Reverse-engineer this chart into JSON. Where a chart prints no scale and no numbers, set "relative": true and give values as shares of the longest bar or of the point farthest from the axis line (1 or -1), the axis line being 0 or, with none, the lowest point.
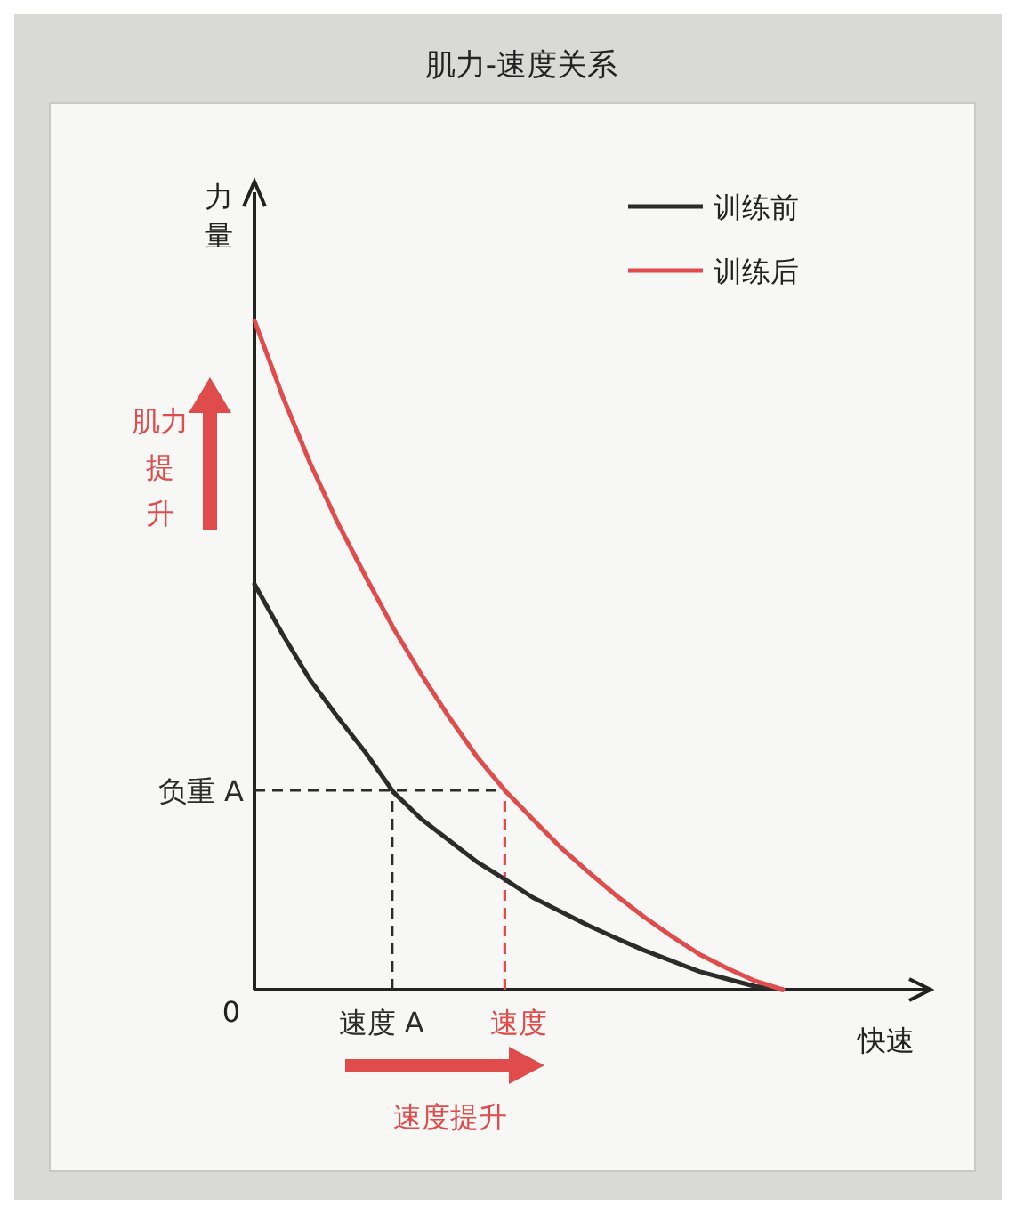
{
  "chart_data": {
    "type": "line",
    "title": "肌力-速度关系",
    "xlabel": "快速",
    "ylabel": "力量",
    "relative": true,
    "legend": "top right",
    "categories": [
      null,
      null,
      null,
      null,
      null,
      null,
      null,
      null,
      null,
      null,
      null,
      null,
      null,
      null,
      null,
      null,
      null,
      null,
      null,
      null
    ],
    "series": [
      {
        "name": "训练前",
        "color": "#2b2b2b",
        "values": [
          0.606,
          0.532,
          0.463,
          0.407,
          0.354,
          0.295,
          0.255,
          0.223,
          0.191,
          0.165,
          0.138,
          0.117,
          0.096,
          0.077,
          0.059,
          0.043,
          0.027,
          0.016,
          0.005,
          0
        ]
      },
      {
        "name": "训练后",
        "color": "#e04b4b",
        "values": [
          1,
          0.888,
          0.787,
          0.697,
          0.617,
          0.54,
          0.471,
          0.407,
          0.348,
          0.298,
          0.255,
          0.213,
          0.176,
          0.141,
          0.109,
          0.08,
          0.053,
          0.032,
          0.013,
          0
        ]
      }
    ],
    "ref_lines": [
      {
        "axis": "y",
        "value": 0.298,
        "label": "负重 A",
        "color": "#2b2b2b",
        "line_style": "dashed"
      }
    ],
    "annotations": [
      "0",
      "肌力提升",
      "速度提升",
      "速度 A",
      "速度"
    ]
  }
}
